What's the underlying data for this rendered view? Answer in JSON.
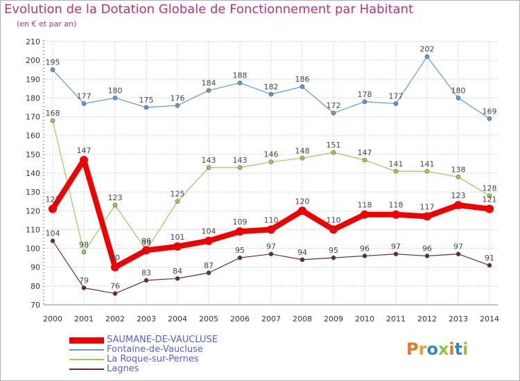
{
  "title": "Evolution de la Dotation Globale de Fonctionnement par Habitant",
  "subtitle": "(en € et par an)",
  "logo_text": "Proxiti",
  "colors": {
    "title": "#c0307a",
    "legend_text": "#5560d8",
    "grid": "#d0d0d0"
  },
  "chart_data": {
    "type": "line",
    "title": "Evolution de la Dotation Globale de Fonctionnement par Habitant",
    "subtitle": "(en € et par an)",
    "x": [
      "2000",
      "2001",
      "2002",
      "2003",
      "2004",
      "2005",
      "2006",
      "2007",
      "2008",
      "2009",
      "2010",
      "2011",
      "2012",
      "2013",
      "2014"
    ],
    "ylim": [
      70,
      210
    ],
    "yticks": [
      70,
      80,
      90,
      100,
      110,
      120,
      130,
      140,
      150,
      160,
      170,
      180,
      190,
      200,
      210
    ],
    "grid": true,
    "legend_position": "bottom-left",
    "series": [
      {
        "name": "SAUMANE-DE-VAUCLUSE",
        "color": "#ee0000",
        "values": [
          121,
          147,
          90,
          99,
          101,
          104,
          109,
          110,
          120,
          110,
          118,
          118,
          117,
          123,
          121
        ]
      },
      {
        "name": "Fontaine-de-Vaucluse",
        "color": "#5b9bd5",
        "values": [
          195,
          177,
          180,
          175,
          176,
          184,
          188,
          182,
          186,
          172,
          178,
          177,
          202,
          180,
          169
        ]
      },
      {
        "name": "La Roque-sur-Pernes",
        "color": "#8fd14f",
        "values": [
          168,
          98,
          123,
          99,
          125,
          143,
          143,
          146,
          148,
          151,
          147,
          141,
          141,
          138,
          128
        ]
      },
      {
        "name": "Lagnes",
        "color": "#6b2a2a",
        "values": [
          104,
          79,
          76,
          83,
          84,
          87,
          95,
          97,
          94,
          95,
          96,
          97,
          96,
          97,
          91
        ]
      }
    ]
  }
}
